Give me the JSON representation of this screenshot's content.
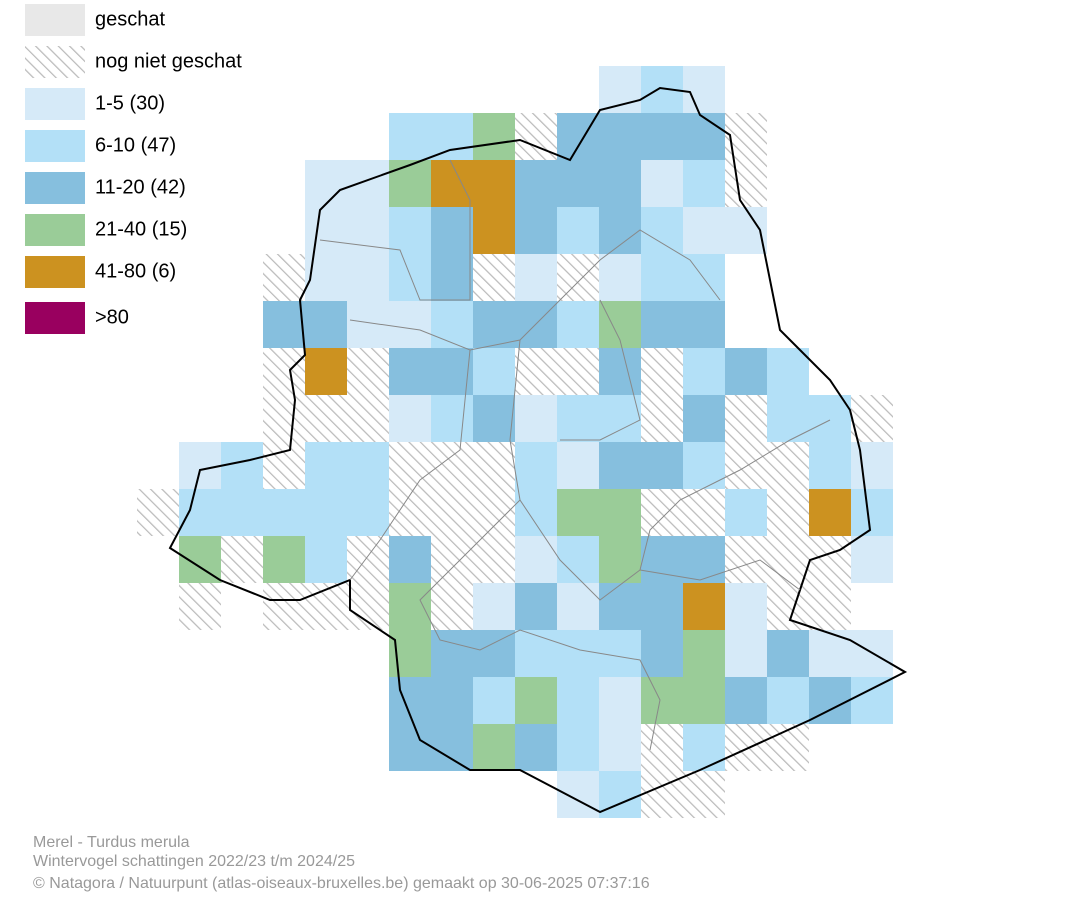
{
  "legend": [
    {
      "label": "geschat"
    },
    {
      "label": "nog niet geschat"
    },
    {
      "label": "1-5 (30)"
    },
    {
      "label": "6-10 (47)"
    },
    {
      "label": "11-20 (42)"
    },
    {
      "label": "21-40 (15)"
    },
    {
      "label": "41-80 (6)"
    },
    {
      "label": ">80"
    }
  ],
  "caption": [
    "Merel - Turdus merula",
    "Wintervogel schattingen 2022/23 t/m 2024/25",
    "© Natagora / Natuurpunt (atlas-oiseaux-bruxelles.be) gemaakt op 30-06-2025 07:37:16"
  ]
}
